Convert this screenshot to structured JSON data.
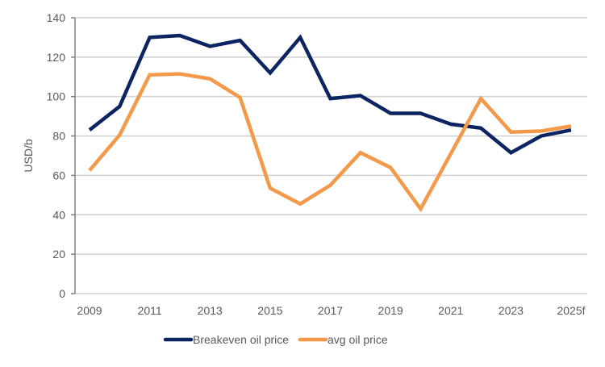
{
  "chart_data": {
    "type": "line",
    "title": "",
    "xlabel": "",
    "ylabel": "USD/b",
    "ylim": [
      0,
      140
    ],
    "yticks": [
      0,
      20,
      40,
      60,
      80,
      100,
      120,
      140
    ],
    "grid": true,
    "legend_position": "bottom",
    "x": [
      "2009",
      "2010",
      "2011",
      "2012",
      "2013",
      "2014",
      "2015",
      "2016",
      "2017",
      "2018",
      "2019",
      "2020",
      "2021",
      "2022",
      "2023",
      "2024",
      "2025f"
    ],
    "xtick_labels": [
      "2009",
      "2011",
      "2013",
      "2015",
      "2017",
      "2019",
      "2021",
      "2023",
      "2025f"
    ],
    "series": [
      {
        "name": "Breakeven oil price",
        "color": "#0c2461",
        "values": [
          83,
          95,
          130,
          131,
          125.5,
          128.5,
          112,
          130,
          99,
          100.5,
          91.5,
          91.5,
          86,
          84,
          71.5,
          80,
          83
        ]
      },
      {
        "name": "avg oil price",
        "color": "#f4994a",
        "values": [
          62.5,
          80.5,
          111,
          111.5,
          109,
          99.5,
          53.5,
          45.5,
          55,
          71.5,
          64,
          43,
          71,
          99,
          82,
          82.5,
          85
        ]
      }
    ]
  }
}
